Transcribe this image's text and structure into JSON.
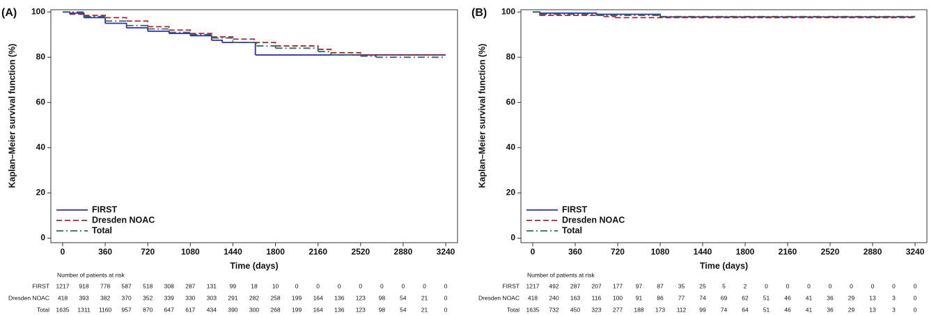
{
  "chart_data": [
    {
      "type": "step",
      "panel_label": "(A)",
      "ylabel": "Kaplan–Meier survival function (%)",
      "xlabel": "Time (days)",
      "xlim": [
        -100,
        3340
      ],
      "xticks": [
        0,
        360,
        720,
        1080,
        1440,
        1800,
        2160,
        2520,
        2880,
        3240
      ],
      "ylim": [
        -2,
        101
      ],
      "yticks": [
        0,
        20,
        40,
        60,
        80,
        100
      ],
      "legend": "lower left",
      "series": [
        {
          "name": "FIRST",
          "color": "#2f2fa8",
          "line_style": "solid",
          "x": [
            0,
            60,
            180,
            360,
            540,
            720,
            900,
            1080,
            1260,
            1350,
            1630,
            3240
          ],
          "values": [
            100,
            99.5,
            97.5,
            95,
            93,
            91.5,
            90.5,
            89.5,
            87.5,
            86.5,
            81,
            81
          ]
        },
        {
          "name": "Dresden NOAC",
          "color": "#a3282f",
          "line_style": "dashed",
          "x": [
            0,
            60,
            180,
            360,
            540,
            720,
            900,
            1080,
            1260,
            1440,
            1620,
            1800,
            2160,
            2270,
            2520,
            3240
          ],
          "values": [
            100,
            99,
            98.5,
            97.5,
            96,
            93.5,
            92,
            90.5,
            89,
            88,
            86.5,
            85,
            83.5,
            82,
            81,
            81
          ]
        },
        {
          "name": "Total",
          "color": "#2e6b5e",
          "line_style": "dashdot",
          "x": [
            0,
            180,
            360,
            540,
            720,
            900,
            1080,
            1260,
            1440,
            1640,
            1800,
            2160,
            2270,
            2520,
            2650,
            3240
          ],
          "values": [
            100,
            98,
            96,
            94,
            92.5,
            91,
            90,
            88.5,
            86.5,
            85,
            84,
            82.5,
            81,
            80.5,
            80,
            80
          ]
        }
      ],
      "risk_table": {
        "title": "Number of patients at risk",
        "rows": [
          {
            "name": "FIRST",
            "values": [
              1217,
              918,
              778,
              587,
              518,
              308,
              287,
              131,
              99,
              18,
              10,
              0,
              0,
              0,
              0,
              0,
              0,
              0,
              0
            ]
          },
          {
            "name": "Dresden NOAC",
            "values": [
              418,
              393,
              382,
              370,
              352,
              339,
              330,
              303,
              291,
              282,
              258,
              199,
              164,
              136,
              123,
              98,
              54,
              21,
              0
            ]
          },
          {
            "name": "Total",
            "values": [
              1635,
              1311,
              1160,
              957,
              870,
              647,
              617,
              434,
              390,
              300,
              268,
              199,
              164,
              136,
              123,
              98,
              54,
              21,
              0
            ]
          }
        ]
      }
    },
    {
      "type": "step",
      "panel_label": "(B)",
      "ylabel": "Kaplan–Meier survival function (%)",
      "xlabel": "Time (days)",
      "xlim": [
        -100,
        3340
      ],
      "xticks": [
        0,
        360,
        720,
        1080,
        1440,
        1800,
        2160,
        2520,
        2880,
        3240
      ],
      "ylim": [
        -2,
        101
      ],
      "yticks": [
        0,
        20,
        40,
        60,
        80,
        100
      ],
      "legend": "lower left",
      "series": [
        {
          "name": "FIRST",
          "color": "#2f2fa8",
          "line_style": "solid",
          "x": [
            0,
            60,
            540,
            1080,
            3240
          ],
          "values": [
            100,
            99.5,
            99,
            97.8,
            97.8
          ]
        },
        {
          "name": "Dresden NOAC",
          "color": "#a3282f",
          "line_style": "dashed",
          "x": [
            0,
            60,
            600,
            700,
            3240
          ],
          "values": [
            100,
            98.5,
            98,
            97.5,
            97.5
          ]
        },
        {
          "name": "Total",
          "color": "#2e6b5e",
          "line_style": "dashdot",
          "x": [
            0,
            60,
            540,
            1080,
            3240
          ],
          "values": [
            100,
            99,
            98.5,
            98,
            98
          ]
        }
      ],
      "risk_table": {
        "title": "Number of patients at risk",
        "rows": [
          {
            "name": "FIRST",
            "values": [
              1217,
              492,
              287,
              207,
              177,
              97,
              87,
              35,
              25,
              5,
              2,
              0,
              0,
              0,
              0,
              0,
              0,
              0,
              0
            ]
          },
          {
            "name": "Dresden NOAC",
            "values": [
              418,
              240,
              163,
              116,
              100,
              91,
              86,
              77,
              74,
              69,
              62,
              51,
              46,
              41,
              36,
              29,
              13,
              3,
              0
            ]
          },
          {
            "name": "Total",
            "values": [
              1635,
              732,
              450,
              323,
              277,
              188,
              173,
              112,
              99,
              74,
              64,
              51,
              46,
              41,
              36,
              29,
              13,
              3,
              0
            ]
          }
        ]
      }
    }
  ]
}
